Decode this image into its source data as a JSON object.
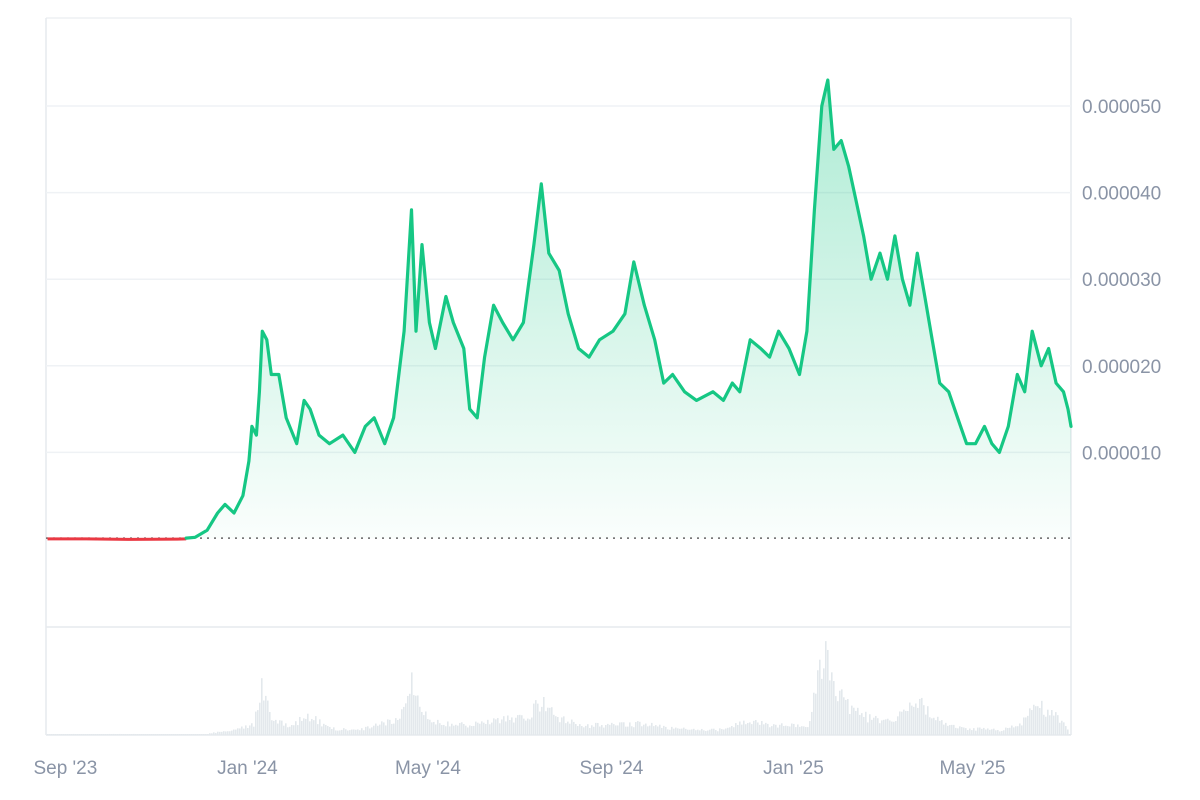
{
  "chart_data": {
    "type": "area",
    "x_ticks": [
      "Sep '23",
      "Jan '24",
      "May '24",
      "Sep '24",
      "Jan '25",
      "May '25"
    ],
    "y_ticks": [
      {
        "value": 1e-05,
        "label": "0.000010"
      },
      {
        "value": 2e-05,
        "label": "0.000020"
      },
      {
        "value": 3e-05,
        "label": "0.000030"
      },
      {
        "value": 4e-05,
        "label": "0.000040"
      },
      {
        "value": 5e-05,
        "label": "0.000050"
      }
    ],
    "x_range": [
      "2023-08-19",
      "2025-07-06"
    ],
    "y_range": [
      0,
      5.35e-05
    ],
    "baseline": 1e-07,
    "grid": true,
    "colors": {
      "up": "#16c784",
      "down": "#ea3943",
      "baseline": "#666666",
      "volume": "#e3e8ec",
      "grid": "#eff2f5"
    },
    "series": [
      {
        "points": [
          [
            "2023-08-20",
            1e-07
          ],
          [
            "2023-09-15",
            1e-07
          ],
          [
            "2023-10-15",
            5e-08
          ],
          [
            "2023-11-15",
            8e-08
          ],
          [
            "2023-11-21",
            1e-07
          ],
          [
            "2023-11-27",
            2e-07
          ],
          [
            "2023-12-05",
            1e-06
          ],
          [
            "2023-12-12",
            3e-06
          ],
          [
            "2023-12-17",
            4e-06
          ],
          [
            "2023-12-23",
            3e-06
          ],
          [
            "2023-12-29",
            5e-06
          ],
          [
            "2024-01-02",
            9e-06
          ],
          [
            "2024-01-04",
            1.3e-05
          ],
          [
            "2024-01-07",
            1.2e-05
          ],
          [
            "2024-01-09",
            1.7e-05
          ],
          [
            "2024-01-11",
            2.4e-05
          ],
          [
            "2024-01-14",
            2.3e-05
          ],
          [
            "2024-01-17",
            1.9e-05
          ],
          [
            "2024-01-22",
            1.9e-05
          ],
          [
            "2024-01-27",
            1.4e-05
          ],
          [
            "2024-02-03",
            1.1e-05
          ],
          [
            "2024-02-08",
            1.6e-05
          ],
          [
            "2024-02-12",
            1.5e-05
          ],
          [
            "2024-02-18",
            1.2e-05
          ],
          [
            "2024-02-25",
            1.1e-05
          ],
          [
            "2024-03-05",
            1.2e-05
          ],
          [
            "2024-03-13",
            1e-05
          ],
          [
            "2024-03-20",
            1.3e-05
          ],
          [
            "2024-03-26",
            1.4e-05
          ],
          [
            "2024-04-02",
            1.1e-05
          ],
          [
            "2024-04-08",
            1.4e-05
          ],
          [
            "2024-04-15",
            2.4e-05
          ],
          [
            "2024-04-20",
            3.8e-05
          ],
          [
            "2024-04-23",
            2.4e-05
          ],
          [
            "2024-04-27",
            3.4e-05
          ],
          [
            "2024-05-02",
            2.5e-05
          ],
          [
            "2024-05-06",
            2.2e-05
          ],
          [
            "2024-05-13",
            2.8e-05
          ],
          [
            "2024-05-18",
            2.5e-05
          ],
          [
            "2024-05-25",
            2.2e-05
          ],
          [
            "2024-05-29",
            1.5e-05
          ],
          [
            "2024-06-03",
            1.4e-05
          ],
          [
            "2024-06-08",
            2.1e-05
          ],
          [
            "2024-06-14",
            2.7e-05
          ],
          [
            "2024-06-20",
            2.5e-05
          ],
          [
            "2024-06-27",
            2.3e-05
          ],
          [
            "2024-07-04",
            2.5e-05
          ],
          [
            "2024-07-11",
            3.4e-05
          ],
          [
            "2024-07-16",
            4.1e-05
          ],
          [
            "2024-07-21",
            3.3e-05
          ],
          [
            "2024-07-28",
            3.1e-05
          ],
          [
            "2024-08-03",
            2.6e-05
          ],
          [
            "2024-08-10",
            2.2e-05
          ],
          [
            "2024-08-17",
            2.1e-05
          ],
          [
            "2024-08-24",
            2.3e-05
          ],
          [
            "2024-09-02",
            2.4e-05
          ],
          [
            "2024-09-10",
            2.6e-05
          ],
          [
            "2024-09-16",
            3.2e-05
          ],
          [
            "2024-09-23",
            2.7e-05
          ],
          [
            "2024-09-30",
            2.3e-05
          ],
          [
            "2024-10-06",
            1.8e-05
          ],
          [
            "2024-10-12",
            1.9e-05
          ],
          [
            "2024-10-20",
            1.7e-05
          ],
          [
            "2024-10-28",
            1.6e-05
          ],
          [
            "2024-11-08",
            1.7e-05
          ],
          [
            "2024-11-15",
            1.6e-05
          ],
          [
            "2024-11-21",
            1.8e-05
          ],
          [
            "2024-11-26",
            1.7e-05
          ],
          [
            "2024-12-03",
            2.3e-05
          ],
          [
            "2024-12-10",
            2.2e-05
          ],
          [
            "2024-12-16",
            2.1e-05
          ],
          [
            "2024-12-22",
            2.4e-05
          ],
          [
            "2024-12-29",
            2.2e-05
          ],
          [
            "2025-01-05",
            1.9e-05
          ],
          [
            "2025-01-10",
            2.4e-05
          ],
          [
            "2025-01-15",
            3.8e-05
          ],
          [
            "2025-01-20",
            5e-05
          ],
          [
            "2025-01-24",
            5.3e-05
          ],
          [
            "2025-01-28",
            4.5e-05
          ],
          [
            "2025-02-02",
            4.6e-05
          ],
          [
            "2025-02-07",
            4.3e-05
          ],
          [
            "2025-02-12",
            3.9e-05
          ],
          [
            "2025-02-17",
            3.5e-05
          ],
          [
            "2025-02-22",
            3e-05
          ],
          [
            "2025-02-28",
            3.3e-05
          ],
          [
            "2025-03-05",
            3e-05
          ],
          [
            "2025-03-10",
            3.5e-05
          ],
          [
            "2025-03-15",
            3e-05
          ],
          [
            "2025-03-20",
            2.7e-05
          ],
          [
            "2025-03-25",
            3.3e-05
          ],
          [
            "2025-03-30",
            2.8e-05
          ],
          [
            "2025-04-04",
            2.3e-05
          ],
          [
            "2025-04-09",
            1.8e-05
          ],
          [
            "2025-04-15",
            1.7e-05
          ],
          [
            "2025-04-21",
            1.4e-05
          ],
          [
            "2025-04-27",
            1.1e-05
          ],
          [
            "2025-05-03",
            1.1e-05
          ],
          [
            "2025-05-09",
            1.3e-05
          ],
          [
            "2025-05-14",
            1.1e-05
          ],
          [
            "2025-05-19",
            1e-05
          ],
          [
            "2025-05-25",
            1.3e-05
          ],
          [
            "2025-05-31",
            1.9e-05
          ],
          [
            "2025-06-05",
            1.7e-05
          ],
          [
            "2025-06-10",
            2.4e-05
          ],
          [
            "2025-06-16",
            2e-05
          ],
          [
            "2025-06-21",
            2.2e-05
          ],
          [
            "2025-06-26",
            1.8e-05
          ],
          [
            "2025-07-01",
            1.7e-05
          ],
          [
            "2025-07-04",
            1.5e-05
          ],
          [
            "2025-07-06",
            1.3e-05
          ]
        ]
      }
    ],
    "volume": [
      [
        "2023-12-05",
        0.02
      ],
      [
        "2023-12-20",
        0.05
      ],
      [
        "2024-01-05",
        0.14
      ],
      [
        "2024-01-11",
        0.62
      ],
      [
        "2024-01-16",
        0.22
      ],
      [
        "2024-01-28",
        0.1
      ],
      [
        "2024-02-10",
        0.24
      ],
      [
        "2024-02-25",
        0.08
      ],
      [
        "2024-03-15",
        0.06
      ],
      [
        "2024-04-10",
        0.18
      ],
      [
        "2024-04-18",
        0.45
      ],
      [
        "2024-04-20",
        0.7
      ],
      [
        "2024-04-25",
        0.32
      ],
      [
        "2024-05-05",
        0.18
      ],
      [
        "2024-05-20",
        0.12
      ],
      [
        "2024-06-05",
        0.14
      ],
      [
        "2024-06-15",
        0.2
      ],
      [
        "2024-07-05",
        0.2
      ],
      [
        "2024-07-15",
        0.4
      ],
      [
        "2024-07-25",
        0.22
      ],
      [
        "2024-08-10",
        0.12
      ],
      [
        "2024-09-05",
        0.12
      ],
      [
        "2024-09-20",
        0.14
      ],
      [
        "2024-10-10",
        0.08
      ],
      [
        "2024-11-10",
        0.06
      ],
      [
        "2024-12-02",
        0.16
      ],
      [
        "2024-12-20",
        0.12
      ],
      [
        "2025-01-10",
        0.1
      ],
      [
        "2025-01-18",
        0.86
      ],
      [
        "2025-01-22",
        0.92
      ],
      [
        "2025-01-26",
        0.7
      ],
      [
        "2025-02-05",
        0.36
      ],
      [
        "2025-02-20",
        0.2
      ],
      [
        "2025-03-08",
        0.16
      ],
      [
        "2025-03-25",
        0.4
      ],
      [
        "2025-04-10",
        0.14
      ],
      [
        "2025-04-25",
        0.08
      ],
      [
        "2025-05-20",
        0.06
      ],
      [
        "2025-06-03",
        0.14
      ],
      [
        "2025-06-10",
        0.4
      ],
      [
        "2025-06-22",
        0.28
      ],
      [
        "2025-07-04",
        0.06
      ]
    ]
  }
}
